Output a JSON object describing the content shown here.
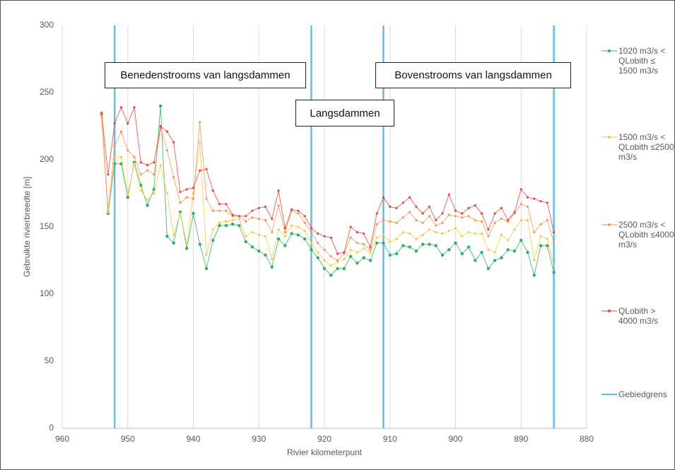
{
  "chart_data": {
    "type": "line",
    "x_label": "Rivier kilometerpunt",
    "y_label": "Gebruikte rivierbreedte [m]",
    "x": [
      954,
      953,
      952,
      951,
      950,
      949,
      948,
      947,
      946,
      945,
      944,
      943,
      942,
      941,
      940,
      939,
      938,
      937,
      936,
      935,
      934,
      933,
      932,
      931,
      930,
      929,
      928,
      927,
      926,
      925,
      924,
      923,
      922,
      921,
      920,
      919,
      918,
      917,
      916,
      915,
      914,
      913,
      912,
      911,
      910,
      909,
      908,
      907,
      906,
      905,
      904,
      903,
      902,
      901,
      900,
      899,
      898,
      897,
      896,
      895,
      894,
      893,
      892,
      891,
      890,
      889,
      888,
      887,
      886,
      885
    ],
    "series": [
      {
        "name": "1020 m3/s < QLobith ≤ 1500 m3/s",
        "color": "#2eb062",
        "values": [
          234,
          160,
          197,
          197,
          172,
          198,
          181,
          166,
          178,
          240,
          143,
          138,
          161,
          134,
          160,
          137,
          119,
          140,
          151,
          151,
          152,
          151,
          139,
          135,
          132,
          129,
          120,
          141,
          136,
          145,
          144,
          141,
          133,
          127,
          119,
          114,
          119,
          119,
          128,
          123,
          127,
          125,
          138,
          138,
          129,
          130,
          136,
          135,
          132,
          137,
          137,
          136,
          129,
          133,
          138,
          130,
          135,
          125,
          131,
          119,
          125,
          127,
          133,
          132,
          140,
          131,
          114,
          136,
          136,
          116
        ]
      },
      {
        "name": "1500 m3/s < QLobith ≤2500 m3/s",
        "color": "#f7c843",
        "values": [
          232,
          161,
          202,
          202,
          174,
          197,
          177,
          170,
          175,
          196,
          175,
          144,
          160,
          137,
          175,
          213,
          129,
          148,
          153,
          154,
          155,
          156,
          143,
          146,
          144,
          143,
          126,
          148,
          143,
          151,
          150,
          147,
          138,
          131,
          125,
          121,
          124,
          126,
          133,
          131,
          134,
          131,
          142,
          144,
          139,
          141,
          146,
          145,
          141,
          144,
          148,
          146,
          145,
          147,
          149,
          143,
          146,
          145,
          145,
          133,
          131,
          144,
          140,
          148,
          155,
          155,
          125,
          143,
          141,
          121
        ]
      },
      {
        "name": "2500 m3/s < QLobith ≤4000 m3/s",
        "color": "#f0965a",
        "values": [
          234,
          162,
          210,
          221,
          207,
          202,
          189,
          192,
          189,
          224,
          207,
          187,
          168,
          172,
          171,
          228,
          171,
          162,
          162,
          162,
          158,
          158,
          154,
          157,
          156,
          155,
          146,
          166,
          146,
          162,
          160,
          153,
          146,
          138,
          133,
          128,
          125,
          130,
          142,
          138,
          137,
          133,
          152,
          155,
          154,
          153,
          157,
          161,
          155,
          153,
          158,
          151,
          153,
          159,
          158,
          157,
          158,
          155,
          154,
          143,
          153,
          156,
          154,
          160,
          167,
          165,
          146,
          152,
          155,
          138
        ]
      },
      {
        "name": "QLobith > 4000 m3/s",
        "color": "#e8423f",
        "values": [
          235,
          189,
          227,
          239,
          227,
          239,
          198,
          196,
          198,
          225,
          221,
          213,
          176,
          178,
          179,
          192,
          193,
          177,
          167,
          167,
          159,
          158,
          158,
          162,
          164,
          165,
          156,
          177,
          149,
          163,
          162,
          158,
          149,
          145,
          143,
          142,
          130,
          131,
          150,
          146,
          145,
          135,
          160,
          172,
          165,
          164,
          168,
          172,
          165,
          160,
          165,
          155,
          160,
          174,
          162,
          160,
          164,
          166,
          160,
          148,
          160,
          164,
          155,
          161,
          178,
          172,
          171,
          169,
          168,
          146
        ]
      }
    ],
    "boundaries": {
      "name": "Gebiedgrens",
      "color": "#5bc0e8",
      "x": [
        952,
        922,
        911,
        885
      ]
    },
    "annotations": [
      "Benedenstrooms van langsdammen",
      "Langsdammen",
      "Bovenstrooms van langsdammen"
    ],
    "xlim": [
      960,
      880
    ],
    "xticks": [
      960,
      950,
      940,
      930,
      920,
      910,
      900,
      890,
      880
    ],
    "ylim": [
      0,
      300
    ],
    "yticks": [
      0,
      50,
      100,
      150,
      200,
      250,
      300
    ],
    "grid": true
  }
}
